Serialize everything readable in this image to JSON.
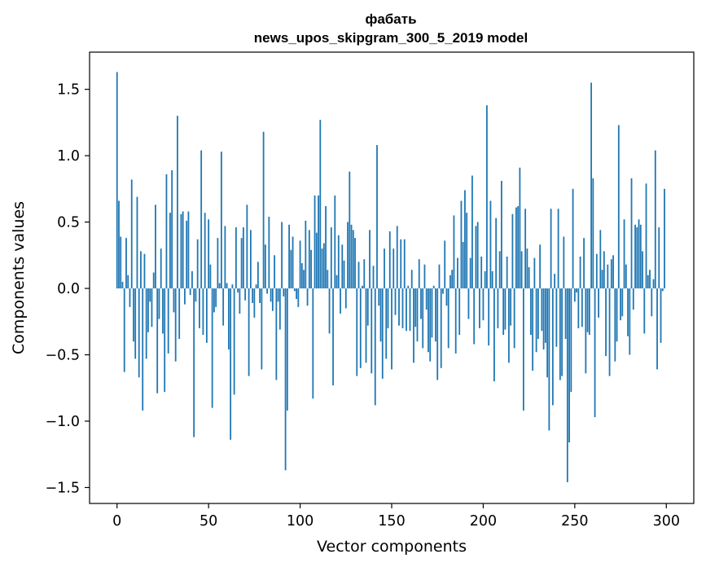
{
  "chart_data": {
    "type": "bar",
    "title": "фабать",
    "subtitle": "news_upos_skipgram_300_5_2019 model",
    "xlabel": "Vector components",
    "ylabel": "Components values",
    "xlim": [
      -15,
      315
    ],
    "ylim": [
      -1.62,
      1.78
    ],
    "xticks": [
      0,
      50,
      100,
      150,
      200,
      250,
      300
    ],
    "yticks": [
      -1.5,
      -1.0,
      -0.5,
      0.0,
      0.5,
      1.0,
      1.5
    ],
    "ytick_labels": [
      "−1.5",
      "−1.0",
      "−0.5",
      "0.0",
      "0.5",
      "1.0",
      "1.5"
    ],
    "grid": false,
    "bar_color": "#1f77b4",
    "x": "0..299",
    "values": [
      1.63,
      0.66,
      0.39,
      0.05,
      -0.63,
      0.38,
      0.1,
      -0.14,
      0.82,
      -0.4,
      -0.53,
      0.69,
      -0.67,
      0.28,
      -0.92,
      0.26,
      -0.53,
      -0.33,
      -0.1,
      -0.29,
      0.12,
      0.63,
      -0.79,
      -0.23,
      0.3,
      -0.34,
      -0.78,
      0.86,
      -0.49,
      0.57,
      0.89,
      -0.18,
      -0.55,
      1.3,
      -0.38,
      0.56,
      0.58,
      -0.12,
      0.51,
      0.58,
      -0.05,
      0.13,
      -1.12,
      -0.1,
      0.37,
      -0.3,
      1.04,
      -0.35,
      0.57,
      -0.41,
      0.52,
      0.18,
      -0.9,
      -0.18,
      -0.14,
      0.38,
      0.04,
      1.03,
      -0.28,
      0.47,
      0.04,
      -0.46,
      -1.14,
      0.03,
      -0.8,
      0.46,
      -0.03,
      -0.19,
      0.38,
      0.46,
      -0.09,
      0.63,
      -0.66,
      0.44,
      -0.11,
      -0.22,
      0.03,
      0.2,
      -0.11,
      -0.61,
      1.18,
      0.33,
      -0.04,
      0.54,
      -0.1,
      -0.17,
      0.25,
      -0.69,
      -0.1,
      -0.31,
      0.5,
      -0.06,
      -1.37,
      -0.92,
      0.48,
      0.29,
      0.39,
      -0.02,
      -0.08,
      -0.14,
      0.36,
      0.19,
      0.14,
      0.51,
      -0.13,
      0.44,
      0.29,
      -0.83,
      0.7,
      0.42,
      0.7,
      1.27,
      0.3,
      0.34,
      0.62,
      0.14,
      -0.34,
      0.46,
      -0.73,
      0.7,
      0.1,
      0.4,
      -0.19,
      0.33,
      0.21,
      -0.15,
      0.5,
      0.88,
      0.48,
      0.44,
      0.38,
      -0.66,
      0.2,
      -0.6,
      0.02,
      0.22,
      -0.56,
      -0.28,
      0.44,
      -0.64,
      0.17,
      -0.88,
      1.08,
      -0.13,
      -0.4,
      -0.68,
      0.3,
      -0.53,
      -0.3,
      0.43,
      -0.61,
      0.3,
      -0.2,
      0.47,
      -0.28,
      0.37,
      -0.3,
      0.37,
      -0.32,
      0.02,
      -0.32,
      0.14,
      -0.56,
      -0.29,
      -0.4,
      0.22,
      -0.23,
      -0.45,
      0.18,
      -0.16,
      -0.48,
      -0.55,
      -0.37,
      0.02,
      -0.4,
      -0.69,
      0.18,
      -0.6,
      -0.04,
      0.36,
      -0.13,
      -0.45,
      0.1,
      0.14,
      0.55,
      -0.49,
      0.23,
      -0.35,
      0.66,
      0.35,
      0.74,
      0.57,
      -0.23,
      0.23,
      0.85,
      -0.42,
      0.47,
      0.5,
      -0.3,
      0.24,
      -0.24,
      0.13,
      1.38,
      -0.43,
      0.66,
      0.13,
      -0.7,
      0.53,
      -0.3,
      0.28,
      0.81,
      -0.35,
      -0.31,
      0.24,
      -0.56,
      -0.28,
      0.56,
      -0.45,
      0.61,
      0.62,
      0.91,
      0.28,
      -0.92,
      0.6,
      0.3,
      0.16,
      -0.35,
      -0.62,
      0.23,
      -0.48,
      -0.38,
      0.33,
      -0.32,
      -0.46,
      -0.41,
      -0.67,
      -1.07,
      0.6,
      -0.88,
      0.11,
      -0.44,
      0.6,
      -0.69,
      -0.66,
      0.39,
      -0.38,
      -1.46,
      -1.16,
      -0.78,
      0.75,
      -0.1,
      -0.03,
      -0.3,
      0.24,
      -0.29,
      0.38,
      -0.64,
      -0.33,
      -0.35,
      1.55,
      0.83,
      -0.97,
      0.26,
      -0.22,
      0.44,
      0.14,
      0.28,
      -0.51,
      0.18,
      -0.66,
      0.22,
      0.25,
      -0.55,
      -0.4,
      1.23,
      -0.24,
      -0.21,
      0.52,
      0.18,
      -0.36,
      -0.5,
      0.83,
      -0.16,
      0.48,
      0.46,
      0.52,
      0.48,
      0.28,
      -0.34,
      0.79,
      0.1,
      0.14,
      -0.21,
      0.07,
      1.04,
      -0.61,
      0.46,
      -0.41,
      -0.02,
      0.75
    ]
  }
}
